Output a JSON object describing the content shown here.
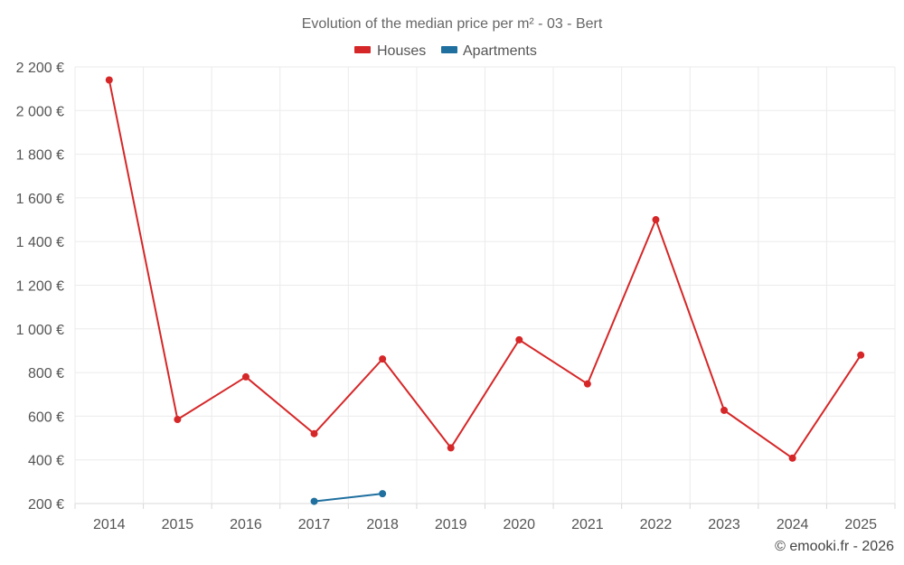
{
  "chart_data": {
    "type": "line",
    "title": "Evolution of the median price per m² - 03 - Bert",
    "categories": [
      "2014",
      "2015",
      "2016",
      "2017",
      "2018",
      "2019",
      "2020",
      "2021",
      "2022",
      "2023",
      "2024",
      "2025"
    ],
    "ylim": [
      200,
      2200
    ],
    "yticks": [
      200,
      400,
      600,
      800,
      1000,
      1200,
      1400,
      1600,
      1800,
      2000,
      2200
    ],
    "ytick_labels": [
      "200 €",
      "400 €",
      "600 €",
      "800 €",
      "1 000 €",
      "1 200 €",
      "1 400 €",
      "1 600 €",
      "1 800 €",
      "2 000 €",
      "2 200 €"
    ],
    "grid": true,
    "legend_position": "top-center",
    "series": [
      {
        "name": "Houses",
        "color": "#d62728",
        "values": [
          2140,
          585,
          780,
          520,
          862,
          455,
          950,
          748,
          1500,
          627,
          408,
          880
        ]
      },
      {
        "name": "Apartments",
        "color": "#1f6f9f",
        "values": [
          null,
          null,
          null,
          210,
          245,
          null,
          null,
          null,
          null,
          null,
          null,
          null
        ]
      }
    ]
  },
  "credit": "© emooki.fr - 2026"
}
